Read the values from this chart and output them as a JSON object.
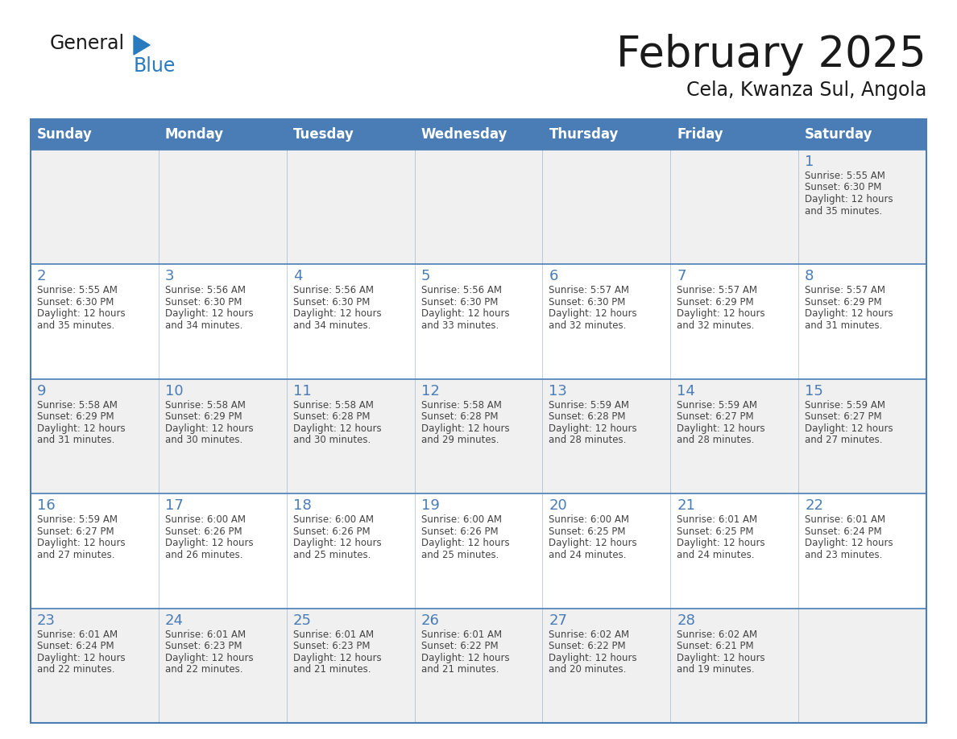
{
  "title": "February 2025",
  "subtitle": "Cela, Kwanza Sul, Angola",
  "days_of_week": [
    "Sunday",
    "Monday",
    "Tuesday",
    "Wednesday",
    "Thursday",
    "Friday",
    "Saturday"
  ],
  "header_bg": "#4a7db5",
  "header_text": "#ffffff",
  "odd_row_bg": "#f0f0f0",
  "even_row_bg": "#ffffff",
  "border_color": "#4a7db5",
  "day_number_color": "#4a7db5",
  "cell_text_color": "#444444",
  "title_color": "#1a1a1a",
  "logo_general_color": "#1a1a1a",
  "logo_blue_color": "#2a7abf",
  "logo_triangle_color": "#2a7abf",
  "calendar_data": [
    [
      null,
      null,
      null,
      null,
      null,
      null,
      {
        "day": 1,
        "sunrise": "5:55 AM",
        "sunset": "6:30 PM",
        "daylight": "12 hours and 35 minutes."
      }
    ],
    [
      {
        "day": 2,
        "sunrise": "5:55 AM",
        "sunset": "6:30 PM",
        "daylight": "12 hours and 35 minutes."
      },
      {
        "day": 3,
        "sunrise": "5:56 AM",
        "sunset": "6:30 PM",
        "daylight": "12 hours and 34 minutes."
      },
      {
        "day": 4,
        "sunrise": "5:56 AM",
        "sunset": "6:30 PM",
        "daylight": "12 hours and 34 minutes."
      },
      {
        "day": 5,
        "sunrise": "5:56 AM",
        "sunset": "6:30 PM",
        "daylight": "12 hours and 33 minutes."
      },
      {
        "day": 6,
        "sunrise": "5:57 AM",
        "sunset": "6:30 PM",
        "daylight": "12 hours and 32 minutes."
      },
      {
        "day": 7,
        "sunrise": "5:57 AM",
        "sunset": "6:29 PM",
        "daylight": "12 hours and 32 minutes."
      },
      {
        "day": 8,
        "sunrise": "5:57 AM",
        "sunset": "6:29 PM",
        "daylight": "12 hours and 31 minutes."
      }
    ],
    [
      {
        "day": 9,
        "sunrise": "5:58 AM",
        "sunset": "6:29 PM",
        "daylight": "12 hours and 31 minutes."
      },
      {
        "day": 10,
        "sunrise": "5:58 AM",
        "sunset": "6:29 PM",
        "daylight": "12 hours and 30 minutes."
      },
      {
        "day": 11,
        "sunrise": "5:58 AM",
        "sunset": "6:28 PM",
        "daylight": "12 hours and 30 minutes."
      },
      {
        "day": 12,
        "sunrise": "5:58 AM",
        "sunset": "6:28 PM",
        "daylight": "12 hours and 29 minutes."
      },
      {
        "day": 13,
        "sunrise": "5:59 AM",
        "sunset": "6:28 PM",
        "daylight": "12 hours and 28 minutes."
      },
      {
        "day": 14,
        "sunrise": "5:59 AM",
        "sunset": "6:27 PM",
        "daylight": "12 hours and 28 minutes."
      },
      {
        "day": 15,
        "sunrise": "5:59 AM",
        "sunset": "6:27 PM",
        "daylight": "12 hours and 27 minutes."
      }
    ],
    [
      {
        "day": 16,
        "sunrise": "5:59 AM",
        "sunset": "6:27 PM",
        "daylight": "12 hours and 27 minutes."
      },
      {
        "day": 17,
        "sunrise": "6:00 AM",
        "sunset": "6:26 PM",
        "daylight": "12 hours and 26 minutes."
      },
      {
        "day": 18,
        "sunrise": "6:00 AM",
        "sunset": "6:26 PM",
        "daylight": "12 hours and 25 minutes."
      },
      {
        "day": 19,
        "sunrise": "6:00 AM",
        "sunset": "6:26 PM",
        "daylight": "12 hours and 25 minutes."
      },
      {
        "day": 20,
        "sunrise": "6:00 AM",
        "sunset": "6:25 PM",
        "daylight": "12 hours and 24 minutes."
      },
      {
        "day": 21,
        "sunrise": "6:01 AM",
        "sunset": "6:25 PM",
        "daylight": "12 hours and 24 minutes."
      },
      {
        "day": 22,
        "sunrise": "6:01 AM",
        "sunset": "6:24 PM",
        "daylight": "12 hours and 23 minutes."
      }
    ],
    [
      {
        "day": 23,
        "sunrise": "6:01 AM",
        "sunset": "6:24 PM",
        "daylight": "12 hours and 22 minutes."
      },
      {
        "day": 24,
        "sunrise": "6:01 AM",
        "sunset": "6:23 PM",
        "daylight": "12 hours and 22 minutes."
      },
      {
        "day": 25,
        "sunrise": "6:01 AM",
        "sunset": "6:23 PM",
        "daylight": "12 hours and 21 minutes."
      },
      {
        "day": 26,
        "sunrise": "6:01 AM",
        "sunset": "6:22 PM",
        "daylight": "12 hours and 21 minutes."
      },
      {
        "day": 27,
        "sunrise": "6:02 AM",
        "sunset": "6:22 PM",
        "daylight": "12 hours and 20 minutes."
      },
      {
        "day": 28,
        "sunrise": "6:02 AM",
        "sunset": "6:21 PM",
        "daylight": "12 hours and 19 minutes."
      },
      null
    ]
  ]
}
